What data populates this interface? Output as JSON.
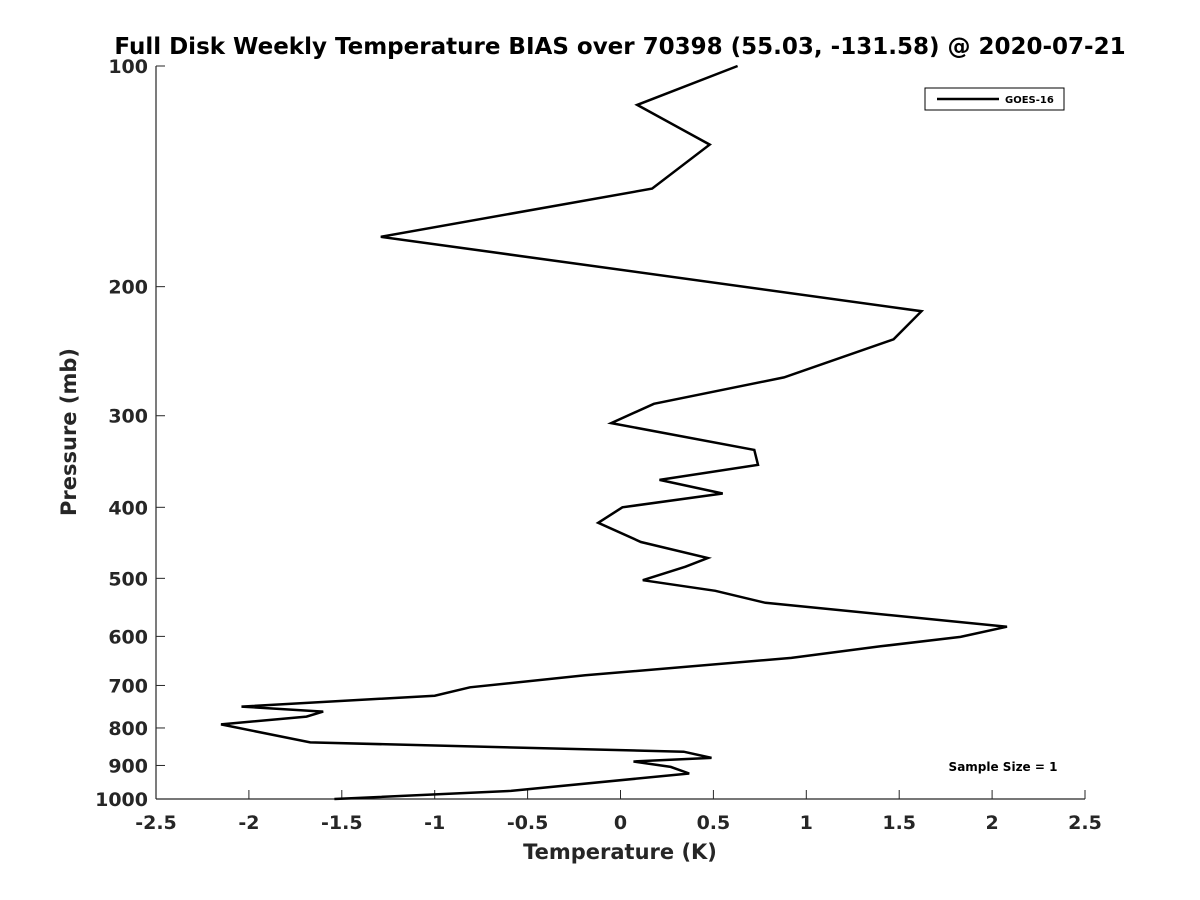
{
  "chart_data": {
    "type": "line",
    "title": "Full Disk Weekly Temperature BIAS over 70398 (55.03, -131.58) @ 2020-07-21",
    "xlabel": "Temperature (K)",
    "ylabel": "Pressure (mb)",
    "xlim": [
      -2.5,
      2.5
    ],
    "ylim": [
      100,
      1000
    ],
    "y_scale": "log",
    "y_reversed": true,
    "x_ticks": [
      "-2.5",
      "-2",
      "-1.5",
      "-1",
      "-0.5",
      "0",
      "0.5",
      "1",
      "1.5",
      "2",
      "2.5"
    ],
    "y_ticks": [
      "100",
      "200",
      "300",
      "400",
      "500",
      "600",
      "700",
      "800",
      "900",
      "1000"
    ],
    "grid": false,
    "legend_position": "top-right",
    "series": [
      {
        "name": "GOES-16",
        "color": "#000000",
        "x": [
          0.63,
          0.09,
          0.48,
          0.17,
          -1.29,
          1.62,
          1.47,
          0.88,
          0.18,
          -0.05,
          0.72,
          0.74,
          0.21,
          0.55,
          0.01,
          -0.12,
          0.11,
          0.47,
          0.35,
          0.12,
          0.51,
          0.78,
          2.08,
          1.83,
          1.4,
          0.92,
          -0.19,
          -0.81,
          -1.0,
          -2.04,
          -1.6,
          -1.69,
          -2.15,
          -1.67,
          0.34,
          0.49,
          0.07,
          0.27,
          0.37,
          -0.59,
          -1.54
        ],
        "y": [
          100,
          113,
          128,
          147,
          171,
          216,
          236,
          266,
          289,
          307,
          334,
          350,
          367,
          383,
          400,
          420,
          446,
          469,
          482,
          503,
          520,
          540,
          582,
          601,
          619,
          642,
          678,
          704,
          723,
          748,
          760,
          772,
          791,
          837,
          862,
          879,
          889,
          904,
          923,
          975,
          1000
        ]
      }
    ],
    "annotations": [
      "Sample Size = 1"
    ]
  }
}
